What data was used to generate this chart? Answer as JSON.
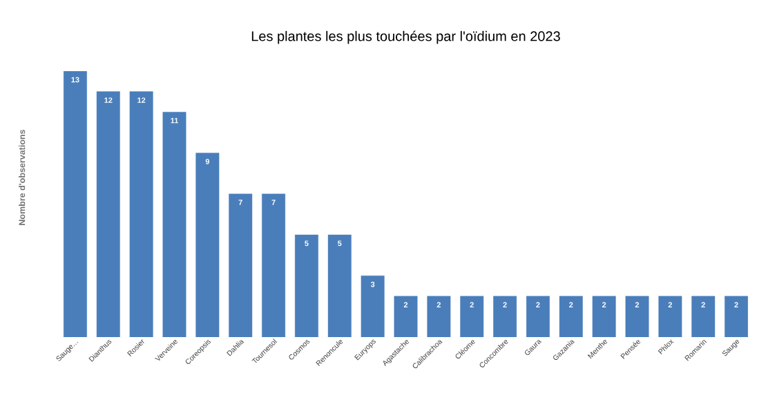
{
  "chart_data": {
    "type": "bar",
    "title": "Les plantes les plus touchées par l'oïdium en 2023",
    "ylabel": "Nombre d'observations",
    "categories": [
      "Sauge…",
      "Dianthus",
      "Rosier",
      "Verveine",
      "Coreopsis",
      "Dahlia",
      "Tournesol",
      "Cosmos",
      "Renoncule",
      "Euryops",
      "Agastache",
      "Calibrachoa",
      "Cléome",
      "Concombre",
      "Gaura",
      "Gazania",
      "Menthe",
      "Pensée",
      "Phlox",
      "Romarin",
      "Sauge"
    ],
    "values": [
      13,
      12,
      12,
      11,
      9,
      7,
      7,
      5,
      5,
      3,
      2,
      2,
      2,
      2,
      2,
      2,
      2,
      2,
      2,
      2,
      2
    ],
    "color": "#4a7ebb",
    "ylim": [
      0,
      13
    ],
    "data_labels": true,
    "tick_labels": "x"
  }
}
